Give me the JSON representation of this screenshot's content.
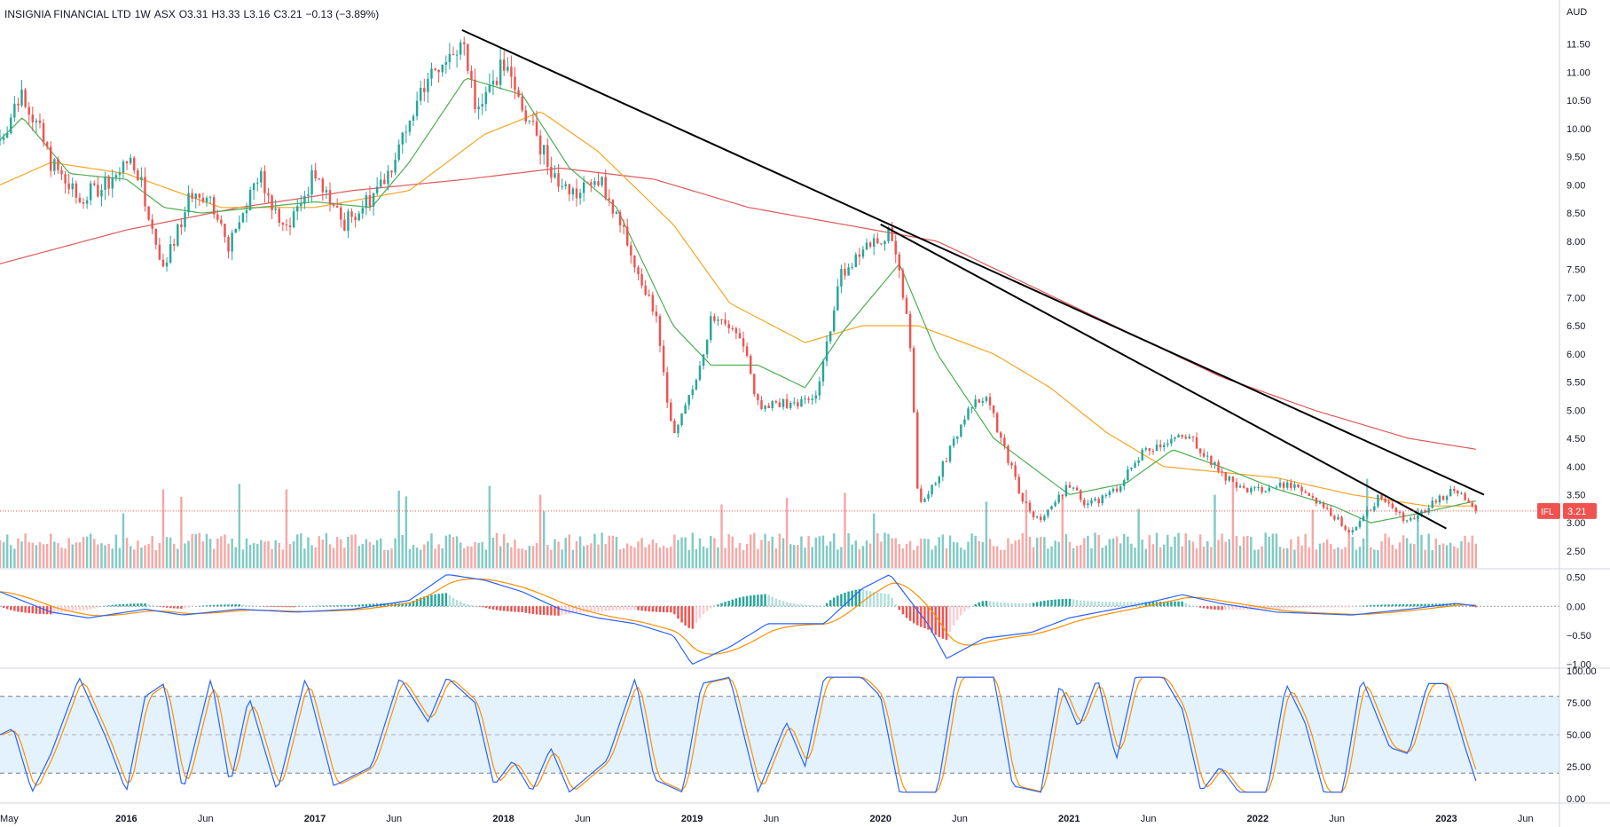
{
  "header": {
    "symbol_name": "INSIGNIA FINANCIAL LTD",
    "interval": "1W",
    "exchange": "ASX",
    "open": "O3.31",
    "high": "H3.33",
    "low": "L3.16",
    "close": "C3.21",
    "change": "−0.13 (−3.89%)"
  },
  "price_axis": {
    "currency": "AUD",
    "ticks": [
      "11.50",
      "11.00",
      "10.50",
      "10.00",
      "9.50",
      "9.00",
      "8.50",
      "8.00",
      "7.50",
      "7.00",
      "6.50",
      "6.00",
      "5.50",
      "5.00",
      "4.50",
      "4.00",
      "3.50",
      "3.00",
      "2.50"
    ],
    "last_tag_symbol": "IFL",
    "last_tag_value": "3.21"
  },
  "macd_axis": {
    "ticks": [
      "0.50",
      "0.00",
      "−0.50",
      "−1.00"
    ]
  },
  "stoch_axis": {
    "ticks": [
      "100.00",
      "75.00",
      "50.00",
      "25.00",
      "0.00"
    ]
  },
  "time_axis": {
    "labels": [
      "May",
      "2016",
      "Jun",
      "2017",
      "Jun",
      "2018",
      "Jun",
      "2019",
      "Jun",
      "2020",
      "Jun",
      "2021",
      "Jun",
      "2022",
      "Jun",
      "2023",
      "Jun"
    ]
  },
  "colors": {
    "up": "#26a69a",
    "down": "#ef5350",
    "ma_fast": "#4caf50",
    "ma_mid": "#f5a623",
    "ma_slow": "#e05a5a",
    "macd_line": "#2962ff",
    "signal_line": "#ff8f00",
    "trendline": "#000000",
    "stoch_band": "#e3f2fd"
  },
  "chart_data": {
    "type": "candlestick",
    "instrument": "INSIGNIA FINANCIAL LTD",
    "interval": "1W",
    "exchange": "ASX",
    "currency": "AUD",
    "ylim": [
      2.2,
      12.0
    ],
    "last": {
      "open": 3.31,
      "high": 3.33,
      "low": 3.16,
      "close": 3.21,
      "change": -0.13,
      "change_pct": -3.89
    },
    "price_keypoints": [
      {
        "t": 2015.33,
        "v": 9.8
      },
      {
        "t": 2015.45,
        "v": 10.7
      },
      {
        "t": 2015.6,
        "v": 9.4
      },
      {
        "t": 2015.75,
        "v": 8.7
      },
      {
        "t": 2015.9,
        "v": 9.1
      },
      {
        "t": 2016.05,
        "v": 9.4
      },
      {
        "t": 2016.2,
        "v": 7.5
      },
      {
        "t": 2016.35,
        "v": 8.9
      },
      {
        "t": 2016.45,
        "v": 8.6
      },
      {
        "t": 2016.55,
        "v": 7.9
      },
      {
        "t": 2016.7,
        "v": 9.2
      },
      {
        "t": 2016.85,
        "v": 8.2
      },
      {
        "t": 2017.0,
        "v": 9.2
      },
      {
        "t": 2017.15,
        "v": 8.3
      },
      {
        "t": 2017.3,
        "v": 8.8
      },
      {
        "t": 2017.45,
        "v": 9.6
      },
      {
        "t": 2017.6,
        "v": 11.0
      },
      {
        "t": 2017.78,
        "v": 11.5
      },
      {
        "t": 2017.85,
        "v": 10.5
      },
      {
        "t": 2018.0,
        "v": 11.1
      },
      {
        "t": 2018.15,
        "v": 10.0
      },
      {
        "t": 2018.3,
        "v": 9.0
      },
      {
        "t": 2018.4,
        "v": 8.8
      },
      {
        "t": 2018.5,
        "v": 9.2
      },
      {
        "t": 2018.65,
        "v": 8.0
      },
      {
        "t": 2018.8,
        "v": 6.8
      },
      {
        "t": 2018.9,
        "v": 4.5
      },
      {
        "t": 2019.0,
        "v": 5.3
      },
      {
        "t": 2019.1,
        "v": 6.6
      },
      {
        "t": 2019.25,
        "v": 6.4
      },
      {
        "t": 2019.35,
        "v": 5.1
      },
      {
        "t": 2019.5,
        "v": 5.1
      },
      {
        "t": 2019.65,
        "v": 5.2
      },
      {
        "t": 2019.8,
        "v": 7.5
      },
      {
        "t": 2019.95,
        "v": 8.0
      },
      {
        "t": 2020.05,
        "v": 8.1
      },
      {
        "t": 2020.15,
        "v": 6.6
      },
      {
        "t": 2020.2,
        "v": 3.3
      },
      {
        "t": 2020.3,
        "v": 3.8
      },
      {
        "t": 2020.45,
        "v": 4.9
      },
      {
        "t": 2020.55,
        "v": 5.3
      },
      {
        "t": 2020.65,
        "v": 4.4
      },
      {
        "t": 2020.75,
        "v": 3.4
      },
      {
        "t": 2020.85,
        "v": 3.0
      },
      {
        "t": 2021.0,
        "v": 3.7
      },
      {
        "t": 2021.1,
        "v": 3.3
      },
      {
        "t": 2021.25,
        "v": 3.6
      },
      {
        "t": 2021.4,
        "v": 4.3
      },
      {
        "t": 2021.55,
        "v": 4.5
      },
      {
        "t": 2021.65,
        "v": 4.5
      },
      {
        "t": 2021.8,
        "v": 3.9
      },
      {
        "t": 2021.9,
        "v": 3.6
      },
      {
        "t": 2022.05,
        "v": 3.6
      },
      {
        "t": 2022.2,
        "v": 3.7
      },
      {
        "t": 2022.35,
        "v": 3.3
      },
      {
        "t": 2022.5,
        "v": 2.8
      },
      {
        "t": 2022.65,
        "v": 3.5
      },
      {
        "t": 2022.8,
        "v": 3.0
      },
      {
        "t": 2022.95,
        "v": 3.4
      },
      {
        "t": 2023.05,
        "v": 3.6
      },
      {
        "t": 2023.17,
        "v": 3.21
      }
    ],
    "ma_fast_keypoints": [
      {
        "t": 2015.33,
        "v": 9.8
      },
      {
        "t": 2015.45,
        "v": 10.2
      },
      {
        "t": 2015.7,
        "v": 9.2
      },
      {
        "t": 2016.0,
        "v": 9.1
      },
      {
        "t": 2016.2,
        "v": 8.6
      },
      {
        "t": 2016.4,
        "v": 8.5
      },
      {
        "t": 2016.7,
        "v": 8.6
      },
      {
        "t": 2017.0,
        "v": 8.7
      },
      {
        "t": 2017.3,
        "v": 8.6
      },
      {
        "t": 2017.5,
        "v": 9.4
      },
      {
        "t": 2017.8,
        "v": 10.9
      },
      {
        "t": 2018.1,
        "v": 10.6
      },
      {
        "t": 2018.35,
        "v": 9.3
      },
      {
        "t": 2018.6,
        "v": 8.6
      },
      {
        "t": 2018.9,
        "v": 6.5
      },
      {
        "t": 2019.1,
        "v": 5.8
      },
      {
        "t": 2019.35,
        "v": 5.8
      },
      {
        "t": 2019.6,
        "v": 5.4
      },
      {
        "t": 2019.8,
        "v": 6.4
      },
      {
        "t": 2020.1,
        "v": 7.6
      },
      {
        "t": 2020.3,
        "v": 6.0
      },
      {
        "t": 2020.6,
        "v": 4.5
      },
      {
        "t": 2020.8,
        "v": 4.0
      },
      {
        "t": 2021.0,
        "v": 3.5
      },
      {
        "t": 2021.3,
        "v": 3.7
      },
      {
        "t": 2021.55,
        "v": 4.3
      },
      {
        "t": 2021.8,
        "v": 4.0
      },
      {
        "t": 2022.1,
        "v": 3.6
      },
      {
        "t": 2022.4,
        "v": 3.3
      },
      {
        "t": 2022.6,
        "v": 3.0
      },
      {
        "t": 2022.9,
        "v": 3.2
      },
      {
        "t": 2023.17,
        "v": 3.4
      }
    ],
    "ma_mid_keypoints": [
      {
        "t": 2015.33,
        "v": 9.0
      },
      {
        "t": 2015.6,
        "v": 9.4
      },
      {
        "t": 2016.0,
        "v": 9.2
      },
      {
        "t": 2016.5,
        "v": 8.6
      },
      {
        "t": 2017.0,
        "v": 8.6
      },
      {
        "t": 2017.5,
        "v": 8.9
      },
      {
        "t": 2017.9,
        "v": 9.9
      },
      {
        "t": 2018.2,
        "v": 10.3
      },
      {
        "t": 2018.5,
        "v": 9.6
      },
      {
        "t": 2018.9,
        "v": 8.3
      },
      {
        "t": 2019.2,
        "v": 6.9
      },
      {
        "t": 2019.6,
        "v": 6.2
      },
      {
        "t": 2019.9,
        "v": 6.5
      },
      {
        "t": 2020.2,
        "v": 6.5
      },
      {
        "t": 2020.6,
        "v": 6.0
      },
      {
        "t": 2020.9,
        "v": 5.4
      },
      {
        "t": 2021.2,
        "v": 4.6
      },
      {
        "t": 2021.5,
        "v": 4.0
      },
      {
        "t": 2021.8,
        "v": 3.9
      },
      {
        "t": 2022.1,
        "v": 3.8
      },
      {
        "t": 2022.5,
        "v": 3.5
      },
      {
        "t": 2022.9,
        "v": 3.3
      },
      {
        "t": 2023.17,
        "v": 3.3
      }
    ],
    "ma_slow_keypoints": [
      {
        "t": 2015.33,
        "v": 7.6
      },
      {
        "t": 2016.0,
        "v": 8.2
      },
      {
        "t": 2016.6,
        "v": 8.6
      },
      {
        "t": 2017.2,
        "v": 8.9
      },
      {
        "t": 2017.8,
        "v": 9.1
      },
      {
        "t": 2018.3,
        "v": 9.3
      },
      {
        "t": 2018.8,
        "v": 9.1
      },
      {
        "t": 2019.3,
        "v": 8.6
      },
      {
        "t": 2019.8,
        "v": 8.3
      },
      {
        "t": 2020.3,
        "v": 8.0
      },
      {
        "t": 2020.8,
        "v": 7.2
      },
      {
        "t": 2021.3,
        "v": 6.4
      },
      {
        "t": 2021.8,
        "v": 5.6
      },
      {
        "t": 2022.3,
        "v": 5.0
      },
      {
        "t": 2022.8,
        "v": 4.5
      },
      {
        "t": 2023.17,
        "v": 4.3
      }
    ],
    "trendlines": [
      {
        "from": {
          "t": 2017.78,
          "v": 11.75
        },
        "to": {
          "t": 2023.2,
          "v": 3.5
        }
      },
      {
        "from": {
          "t": 2020.0,
          "v": 8.3
        },
        "to": {
          "t": 2023.0,
          "v": 2.9
        }
      }
    ],
    "last_price_line": 3.21,
    "volume_bars": 414,
    "macd": {
      "ylim": [
        -1.05,
        0.6
      ],
      "macd_keypoints": [
        {
          "t": 2015.33,
          "v": 0.25
        },
        {
          "t": 2015.6,
          "v": -0.1
        },
        {
          "t": 2015.8,
          "v": -0.2
        },
        {
          "t": 2016.1,
          "v": -0.05
        },
        {
          "t": 2016.3,
          "v": -0.15
        },
        {
          "t": 2016.6,
          "v": -0.05
        },
        {
          "t": 2016.9,
          "v": -0.1
        },
        {
          "t": 2017.2,
          "v": -0.05
        },
        {
          "t": 2017.5,
          "v": 0.1
        },
        {
          "t": 2017.7,
          "v": 0.55
        },
        {
          "t": 2017.9,
          "v": 0.45
        },
        {
          "t": 2018.1,
          "v": 0.25
        },
        {
          "t": 2018.3,
          "v": -0.05
        },
        {
          "t": 2018.5,
          "v": -0.2
        },
        {
          "t": 2018.7,
          "v": -0.3
        },
        {
          "t": 2018.9,
          "v": -0.5
        },
        {
          "t": 2019.0,
          "v": -1.0
        },
        {
          "t": 2019.2,
          "v": -0.7
        },
        {
          "t": 2019.4,
          "v": -0.3
        },
        {
          "t": 2019.7,
          "v": -0.3
        },
        {
          "t": 2019.9,
          "v": 0.3
        },
        {
          "t": 2020.05,
          "v": 0.55
        },
        {
          "t": 2020.25,
          "v": -0.3
        },
        {
          "t": 2020.35,
          "v": -0.9
        },
        {
          "t": 2020.55,
          "v": -0.55
        },
        {
          "t": 2020.8,
          "v": -0.45
        },
        {
          "t": 2021.0,
          "v": -0.2
        },
        {
          "t": 2021.4,
          "v": 0.05
        },
        {
          "t": 2021.6,
          "v": 0.2
        },
        {
          "t": 2021.8,
          "v": 0.05
        },
        {
          "t": 2022.1,
          "v": -0.1
        },
        {
          "t": 2022.5,
          "v": -0.15
        },
        {
          "t": 2022.8,
          "v": -0.05
        },
        {
          "t": 2023.05,
          "v": 0.05
        },
        {
          "t": 2023.17,
          "v": 0.0
        }
      ]
    },
    "stochastic": {
      "ylim": [
        0,
        100
      ],
      "levels": [
        80,
        50,
        20
      ],
      "k_keypoints": [
        {
          "t": 2015.33,
          "v": 50
        },
        {
          "t": 2015.4,
          "v": 55
        },
        {
          "t": 2015.5,
          "v": 5
        },
        {
          "t": 2015.6,
          "v": 35
        },
        {
          "t": 2015.75,
          "v": 95
        },
        {
          "t": 2015.9,
          "v": 45
        },
        {
          "t": 2016.0,
          "v": 5
        },
        {
          "t": 2016.1,
          "v": 80
        },
        {
          "t": 2016.2,
          "v": 90
        },
        {
          "t": 2016.3,
          "v": 5
        },
        {
          "t": 2016.45,
          "v": 95
        },
        {
          "t": 2016.55,
          "v": 10
        },
        {
          "t": 2016.65,
          "v": 80
        },
        {
          "t": 2016.8,
          "v": 5
        },
        {
          "t": 2016.95,
          "v": 95
        },
        {
          "t": 2017.1,
          "v": 10
        },
        {
          "t": 2017.3,
          "v": 25
        },
        {
          "t": 2017.45,
          "v": 95
        },
        {
          "t": 2017.6,
          "v": 60
        },
        {
          "t": 2017.7,
          "v": 95
        },
        {
          "t": 2017.85,
          "v": 75
        },
        {
          "t": 2017.95,
          "v": 10
        },
        {
          "t": 2018.05,
          "v": 30
        },
        {
          "t": 2018.15,
          "v": 5
        },
        {
          "t": 2018.25,
          "v": 40
        },
        {
          "t": 2018.35,
          "v": 5
        },
        {
          "t": 2018.55,
          "v": 30
        },
        {
          "t": 2018.7,
          "v": 95
        },
        {
          "t": 2018.8,
          "v": 15
        },
        {
          "t": 2018.95,
          "v": 5
        },
        {
          "t": 2019.05,
          "v": 90
        },
        {
          "t": 2019.2,
          "v": 95
        },
        {
          "t": 2019.35,
          "v": 5
        },
        {
          "t": 2019.5,
          "v": 60
        },
        {
          "t": 2019.6,
          "v": 25
        },
        {
          "t": 2019.7,
          "v": 95
        },
        {
          "t": 2019.9,
          "v": 95
        },
        {
          "t": 2020.0,
          "v": 80
        },
        {
          "t": 2020.1,
          "v": 5
        },
        {
          "t": 2020.3,
          "v": 5
        },
        {
          "t": 2020.4,
          "v": 95
        },
        {
          "t": 2020.6,
          "v": 95
        },
        {
          "t": 2020.7,
          "v": 10
        },
        {
          "t": 2020.85,
          "v": 5
        },
        {
          "t": 2020.95,
          "v": 90
        },
        {
          "t": 2021.05,
          "v": 55
        },
        {
          "t": 2021.15,
          "v": 95
        },
        {
          "t": 2021.25,
          "v": 30
        },
        {
          "t": 2021.35,
          "v": 95
        },
        {
          "t": 2021.5,
          "v": 95
        },
        {
          "t": 2021.6,
          "v": 70
        },
        {
          "t": 2021.7,
          "v": 5
        },
        {
          "t": 2021.8,
          "v": 25
        },
        {
          "t": 2021.9,
          "v": 5
        },
        {
          "t": 2022.05,
          "v": 5
        },
        {
          "t": 2022.15,
          "v": 90
        },
        {
          "t": 2022.25,
          "v": 60
        },
        {
          "t": 2022.35,
          "v": 5
        },
        {
          "t": 2022.45,
          "v": 5
        },
        {
          "t": 2022.55,
          "v": 95
        },
        {
          "t": 2022.7,
          "v": 40
        },
        {
          "t": 2022.8,
          "v": 35
        },
        {
          "t": 2022.9,
          "v": 90
        },
        {
          "t": 2023.0,
          "v": 90
        },
        {
          "t": 2023.1,
          "v": 40
        },
        {
          "t": 2023.17,
          "v": 8
        }
      ]
    }
  }
}
